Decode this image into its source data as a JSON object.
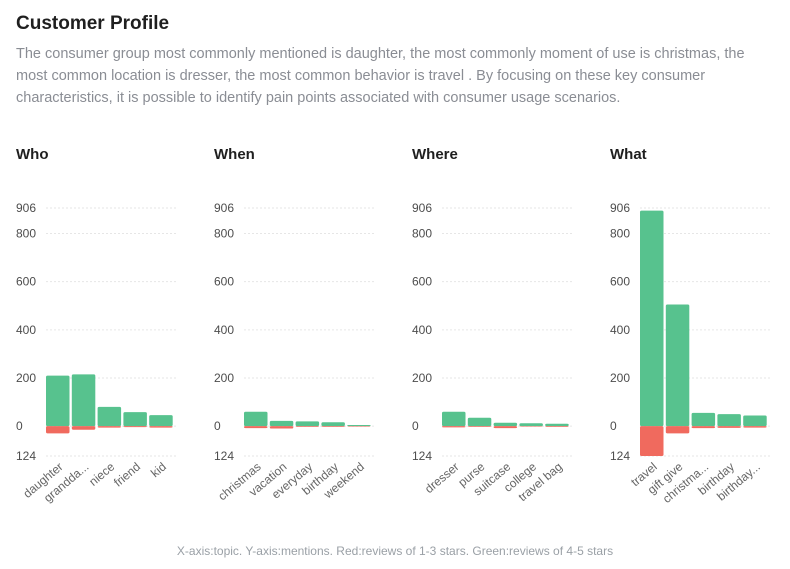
{
  "header": {
    "title": "Customer Profile",
    "description": "The consumer group most commonly mentioned is daughter, the most commonly moment of use is christmas, the most common location is dresser, the most common behavior is travel . By focusing on these key consumer characteristics, it is possible to identify pain points associated with consumer usage scenarios."
  },
  "colors": {
    "positive": "#57c28e",
    "negative": "#f06a5e",
    "grid": "#e6e6e6"
  },
  "chart_data": [
    {
      "type": "bar",
      "title": "Who",
      "categories": [
        "daughter",
        "grandda...",
        "niece",
        "friend",
        "kid"
      ],
      "series": [
        {
          "name": "Green:reviews of 4-5 stars",
          "values": [
            210,
            215,
            80,
            58,
            46
          ]
        },
        {
          "name": "Red:reviews of 1-3 stars",
          "values": [
            -30,
            -15,
            -6,
            -4,
            -6
          ]
        }
      ],
      "ylim": [
        -124,
        906
      ],
      "yticks": [
        -124,
        0,
        200,
        400,
        600,
        800,
        906
      ],
      "ytick_labels": [
        "124",
        "0",
        "200",
        "400",
        "600",
        "800",
        "906"
      ]
    },
    {
      "type": "bar",
      "title": "When",
      "categories": [
        "christmas",
        "vacation",
        "everyday",
        "birthday",
        "weekend"
      ],
      "series": [
        {
          "name": "Green:reviews of 4-5 stars",
          "values": [
            60,
            22,
            20,
            16,
            5
          ]
        },
        {
          "name": "Red:reviews of 1-3 stars",
          "values": [
            -8,
            -10,
            -3,
            -3,
            -2
          ]
        }
      ],
      "ylim": [
        -124,
        906
      ],
      "yticks": [
        -124,
        0,
        200,
        400,
        600,
        800,
        906
      ],
      "ytick_labels": [
        "124",
        "0",
        "200",
        "400",
        "600",
        "800",
        "906"
      ]
    },
    {
      "type": "bar",
      "title": "Where",
      "categories": [
        "dresser",
        "purse",
        "suitcase",
        "college",
        "travel bag"
      ],
      "series": [
        {
          "name": "Green:reviews of 4-5 stars",
          "values": [
            60,
            35,
            14,
            12,
            10
          ]
        },
        {
          "name": "Red:reviews of 1-3 stars",
          "values": [
            -5,
            -3,
            -8,
            -2,
            -3
          ]
        }
      ],
      "ylim": [
        -124,
        906
      ],
      "yticks": [
        -124,
        0,
        200,
        400,
        600,
        800,
        906
      ],
      "ytick_labels": [
        "124",
        "0",
        "200",
        "400",
        "600",
        "800",
        "906"
      ]
    },
    {
      "type": "bar",
      "title": "What",
      "categories": [
        "travel",
        "gift give",
        "christma...",
        "birthday",
        "birthday..."
      ],
      "series": [
        {
          "name": "Green:reviews of 4-5 stars",
          "values": [
            895,
            505,
            55,
            50,
            44
          ]
        },
        {
          "name": "Red:reviews of 1-3 stars",
          "values": [
            -124,
            -30,
            -8,
            -7,
            -6
          ]
        }
      ],
      "ylim": [
        -124,
        906
      ],
      "yticks": [
        -124,
        0,
        200,
        400,
        600,
        800,
        906
      ],
      "ytick_labels": [
        "124",
        "0",
        "200",
        "400",
        "600",
        "800",
        "906"
      ]
    }
  ],
  "footer": {
    "caption": "X-axis:topic. Y-axis:mentions. Red:reviews of 1-3 stars. Green:reviews of 4-5 stars"
  }
}
